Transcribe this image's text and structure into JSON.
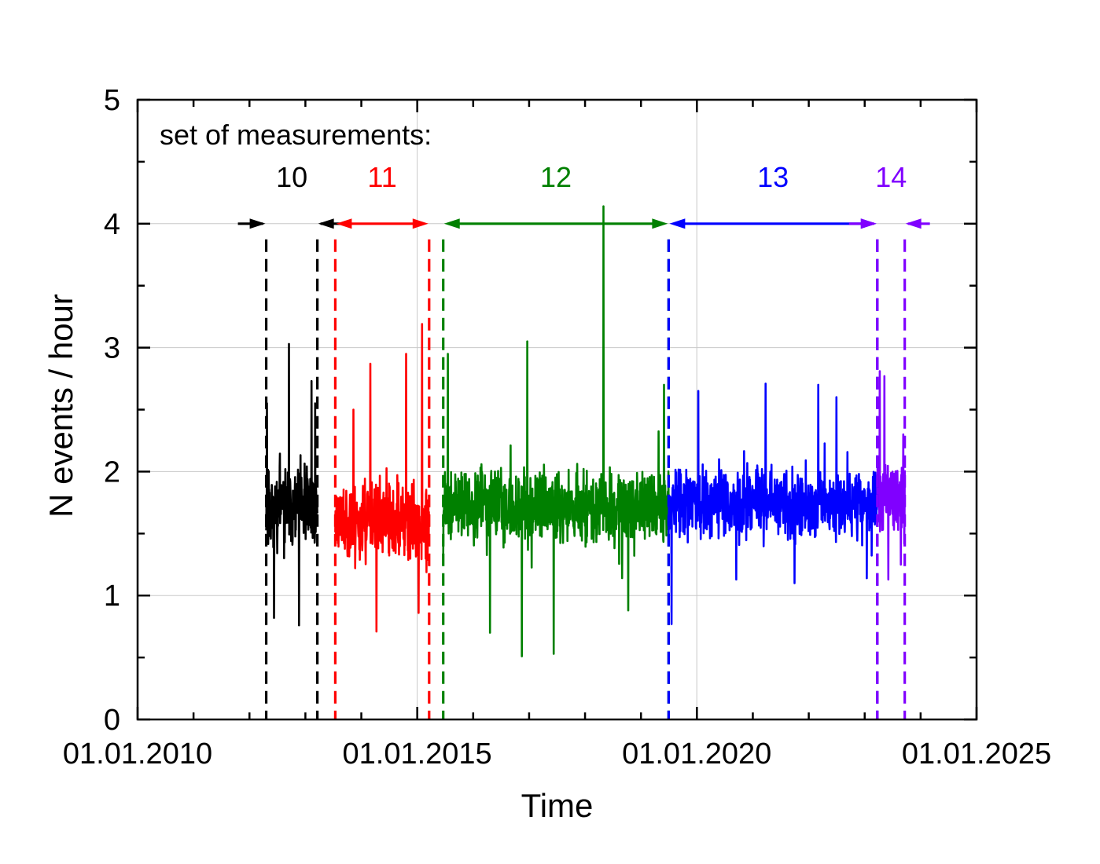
{
  "chart_data": {
    "type": "line",
    "xlabel": "Time",
    "ylabel": "N events / hour",
    "xlim": [
      "2010-01-01",
      "2025-01-01"
    ],
    "ylim": [
      0,
      5
    ],
    "x_ticks": [
      "01.01.2010",
      "01.01.2015",
      "01.01.2020",
      "01.01.2025"
    ],
    "y_ticks": [
      "0",
      "1",
      "2",
      "3",
      "4",
      "5"
    ],
    "grid": true,
    "annotation": "set of measurements:",
    "series": [
      {
        "name": "10",
        "color": "#000000",
        "start": "2012-04-20",
        "end": "2013-03-20",
        "base": 1.72,
        "noise": 0.33,
        "seed": 11,
        "peaks": [
          [
            "2012-04-25",
            2.55
          ],
          [
            "2012-06-10",
            0.82
          ],
          [
            "2012-09-15",
            3.03
          ],
          [
            "2012-11-20",
            0.76
          ],
          [
            "2013-02-10",
            2.73
          ],
          [
            "2013-03-05",
            2.55
          ]
        ]
      },
      {
        "name": "11",
        "color": "#ff0000",
        "start": "2013-07-15",
        "end": "2015-03-20",
        "base": 1.6,
        "noise": 0.3,
        "seed": 23,
        "peaks": [
          [
            "2013-11-10",
            2.5
          ],
          [
            "2014-03-01",
            2.87
          ],
          [
            "2014-04-10",
            0.71
          ],
          [
            "2014-10-20",
            2.95
          ],
          [
            "2015-01-10",
            0.86
          ],
          [
            "2015-02-01",
            3.19
          ]
        ]
      },
      {
        "name": "12",
        "color": "#008000",
        "start": "2015-06-20",
        "end": "2019-07-01",
        "base": 1.72,
        "noise": 0.28,
        "seed": 37,
        "peaks": [
          [
            "2015-07-20",
            2.95
          ],
          [
            "2016-04-20",
            0.7
          ],
          [
            "2016-11-15",
            0.51
          ],
          [
            "2016-12-20",
            3.05
          ],
          [
            "2017-06-10",
            0.53
          ],
          [
            "2018-05-01",
            4.14
          ],
          [
            "2018-10-10",
            0.88
          ],
          [
            "2019-06-01",
            2.7
          ]
        ]
      },
      {
        "name": "13",
        "color": "#0000ff",
        "start": "2019-07-01",
        "end": "2023-03-25",
        "base": 1.75,
        "noise": 0.27,
        "seed": 53,
        "peaks": [
          [
            "2019-07-20",
            0.77
          ],
          [
            "2020-01-10",
            2.65
          ],
          [
            "2020-09-15",
            1.13
          ],
          [
            "2021-03-25",
            2.71
          ],
          [
            "2021-10-01",
            1.1
          ],
          [
            "2022-03-05",
            2.7
          ],
          [
            "2022-07-01",
            2.6
          ],
          [
            "2023-01-15",
            1.14
          ]
        ]
      },
      {
        "name": "14",
        "color": "#8000ff",
        "start": "2023-03-25",
        "end": "2023-09-20",
        "base": 1.8,
        "noise": 0.3,
        "seed": 71,
        "peaks": [
          [
            "2023-04-10",
            2.81
          ],
          [
            "2023-05-10",
            2.77
          ],
          [
            "2023-06-05",
            1.13
          ],
          [
            "2023-08-25",
            1.25
          ],
          [
            "2023-09-10",
            2.3
          ]
        ]
      }
    ],
    "periods": [
      {
        "label": "10",
        "color": "#000000",
        "start": "2012-04-20",
        "end": "2013-03-20",
        "arrows": "inward"
      },
      {
        "label": "11",
        "color": "#ff0000",
        "start": "2013-07-15",
        "end": "2015-03-20",
        "arrows": "outward"
      },
      {
        "label": "12",
        "color": "#008000",
        "start": "2015-06-20",
        "end": "2019-07-01",
        "arrows": "outward"
      },
      {
        "label": "13",
        "color": "#0000ff",
        "start": "2019-07-01",
        "end": "2023-03-25",
        "arrows": "outward"
      },
      {
        "label": "14",
        "color": "#8000ff",
        "start": "2023-03-25",
        "end": "2023-09-20",
        "arrows": "inward"
      }
    ]
  }
}
